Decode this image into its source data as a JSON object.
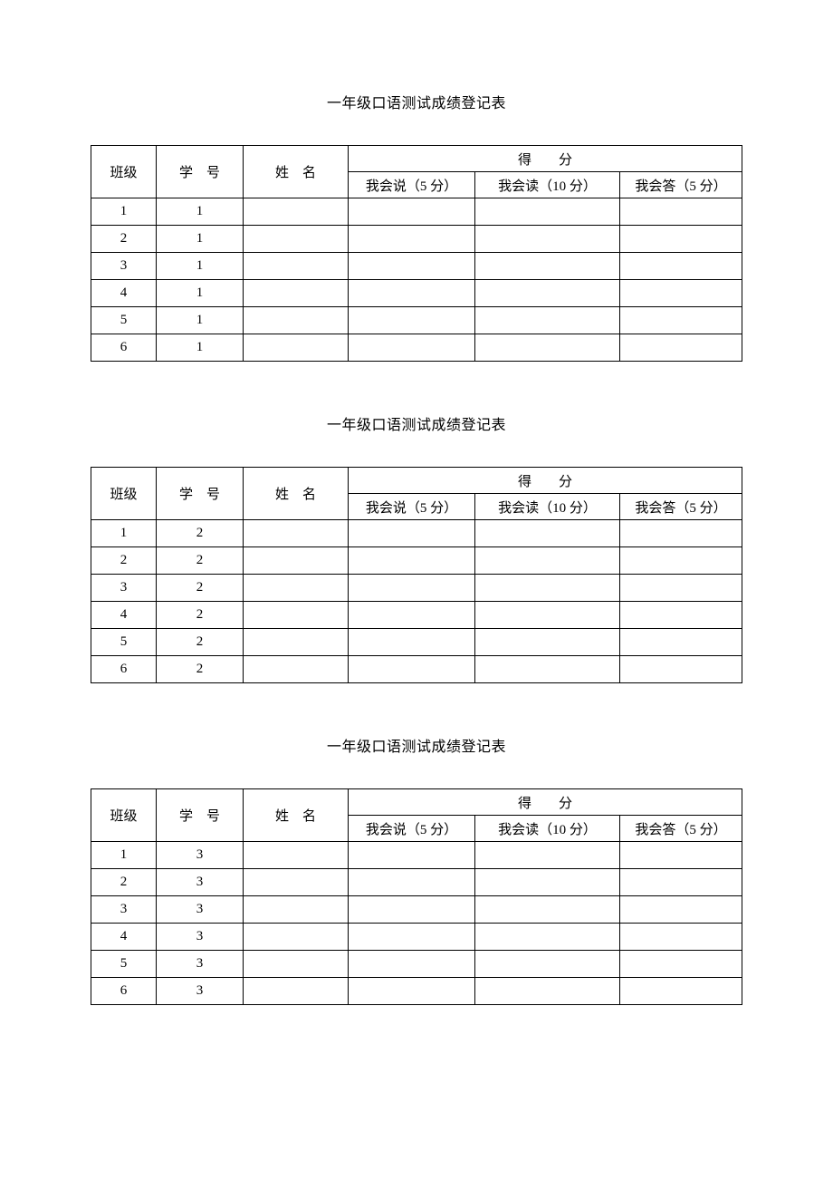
{
  "title": "一年级口语测试成绩登记表",
  "header": {
    "class": "班级",
    "studentId": "学　号",
    "name": "姓　名",
    "score": "得　　分",
    "sub_say": "我会说（5 分）",
    "sub_read": "我会读（10 分）",
    "sub_answer": "我会答（5 分）"
  },
  "sections": [
    {
      "rows": [
        {
          "class": "1",
          "sid": "1",
          "name": "",
          "say": "",
          "read": "",
          "ans": ""
        },
        {
          "class": "2",
          "sid": "1",
          "name": "",
          "say": "",
          "read": "",
          "ans": ""
        },
        {
          "class": "3",
          "sid": "1",
          "name": "",
          "say": "",
          "read": "",
          "ans": ""
        },
        {
          "class": "4",
          "sid": "1",
          "name": "",
          "say": "",
          "read": "",
          "ans": ""
        },
        {
          "class": "5",
          "sid": "1",
          "name": "",
          "say": "",
          "read": "",
          "ans": ""
        },
        {
          "class": "6",
          "sid": "1",
          "name": "",
          "say": "",
          "read": "",
          "ans": ""
        }
      ]
    },
    {
      "rows": [
        {
          "class": "1",
          "sid": "2",
          "name": "",
          "say": "",
          "read": "",
          "ans": ""
        },
        {
          "class": "2",
          "sid": "2",
          "name": "",
          "say": "",
          "read": "",
          "ans": ""
        },
        {
          "class": "3",
          "sid": "2",
          "name": "",
          "say": "",
          "read": "",
          "ans": ""
        },
        {
          "class": "4",
          "sid": "2",
          "name": "",
          "say": "",
          "read": "",
          "ans": ""
        },
        {
          "class": "5",
          "sid": "2",
          "name": "",
          "say": "",
          "read": "",
          "ans": ""
        },
        {
          "class": "6",
          "sid": "2",
          "name": "",
          "say": "",
          "read": "",
          "ans": ""
        }
      ]
    },
    {
      "rows": [
        {
          "class": "1",
          "sid": "3",
          "name": "",
          "say": "",
          "read": "",
          "ans": ""
        },
        {
          "class": "2",
          "sid": "3",
          "name": "",
          "say": "",
          "read": "",
          "ans": ""
        },
        {
          "class": "3",
          "sid": "3",
          "name": "",
          "say": "",
          "read": "",
          "ans": ""
        },
        {
          "class": "4",
          "sid": "3",
          "name": "",
          "say": "",
          "read": "",
          "ans": ""
        },
        {
          "class": "5",
          "sid": "3",
          "name": "",
          "say": "",
          "read": "",
          "ans": ""
        },
        {
          "class": "6",
          "sid": "3",
          "name": "",
          "say": "",
          "read": "",
          "ans": ""
        }
      ]
    }
  ],
  "style": {
    "page_bg": "#ffffff",
    "text_color": "#000000",
    "border_color": "#000000",
    "title_fontsize": 16,
    "cell_fontsize": 15
  }
}
